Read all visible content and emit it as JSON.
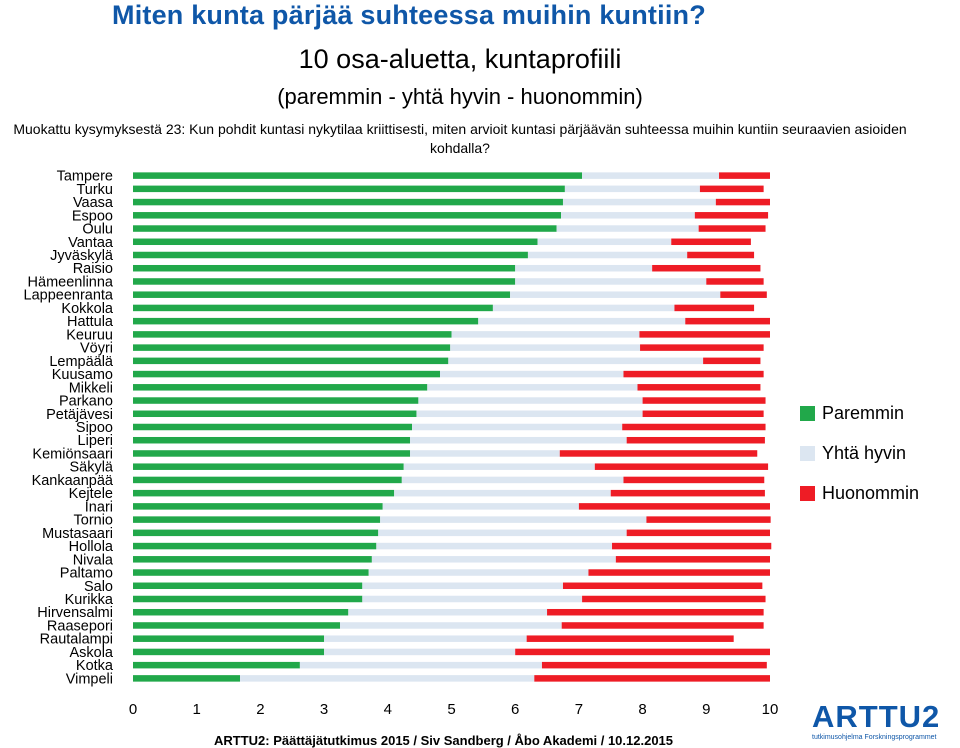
{
  "header": {
    "title": "Miten kunta pärjää suhteessa muihin kuntiin?",
    "subtitle1": "10 osa-aluetta, kuntaprofiili",
    "subtitle2": "(paremmin - yhtä hyvin - huonommin)",
    "question": "Muokattu kysymyksestä 23: Kun pohdit kuntasi nykytilaa kriittisesti, miten arvioit kuntasi pärjäävän suhteessa muihin kuntiin seuraavien asioiden kohdalla?"
  },
  "colors": {
    "paremmin": "#21a84a",
    "yhta_hyvin": "#dce6f1",
    "huonommin": "#ee1c25",
    "title": "#0f57a8"
  },
  "footer": {
    "text": "ARTTU2: Päättäjätutkimus 2015 / Siv Sandberg / Åbo Akademi / 10.12.2015"
  },
  "logo": {
    "name": "ARTTU2",
    "tagline": "tutkimusohjelma  Forskningsprogrammet"
  },
  "chart_data": {
    "type": "bar",
    "orientation": "horizontal",
    "stacked": true,
    "xlim": [
      0,
      10
    ],
    "xticks": [
      "0",
      "1",
      "2",
      "3",
      "4",
      "5",
      "6",
      "7",
      "8",
      "9",
      "10"
    ],
    "grid": false,
    "legend_position": "right",
    "categories": [
      "Tampere",
      "Turku",
      "Vaasa",
      "Espoo",
      "Oulu",
      "Vantaa",
      "Jyväskylä",
      "Raisio",
      "Hämeenlinna",
      "Lappeenranta",
      "Kokkola",
      "Hattula",
      "Keuruu",
      "Vöyri",
      "Lempäälä",
      "Kuusamo",
      "Mikkeli",
      "Parkano",
      "Petäjävesi",
      "Sipoo",
      "Liperi",
      "Kemiönsaari",
      "Säkylä",
      "Kankaanpää",
      "Kejtele",
      "Inari",
      "Tornio",
      "Mustasaari",
      "Hollola",
      "Nivala",
      "Paltamo",
      "Salo",
      "Kurikka",
      "Hirvensalmi",
      "Raasepori",
      "Rautalampi",
      "Askola",
      "Kotka",
      "Vimpeli"
    ],
    "series": [
      {
        "name": "Paremmin",
        "values": [
          7.05,
          6.78,
          6.75,
          6.72,
          6.65,
          6.35,
          6.2,
          6.0,
          6.0,
          5.92,
          5.65,
          5.42,
          5.0,
          4.98,
          4.95,
          4.82,
          4.62,
          4.48,
          4.45,
          4.38,
          4.35,
          4.35,
          4.25,
          4.22,
          4.1,
          3.92,
          3.88,
          3.85,
          3.82,
          3.75,
          3.7,
          3.6,
          3.6,
          3.38,
          3.25,
          3.0,
          3.0,
          2.62,
          1.68
        ]
      },
      {
        "name": "Yhtä hyvin",
        "values": [
          2.15,
          2.12,
          2.4,
          2.1,
          2.23,
          2.1,
          2.5,
          2.15,
          3.0,
          3.3,
          2.85,
          3.25,
          2.95,
          2.98,
          4.0,
          2.88,
          3.3,
          3.52,
          3.55,
          3.3,
          3.4,
          2.35,
          3.0,
          3.48,
          3.4,
          3.08,
          4.18,
          3.9,
          3.7,
          3.83,
          3.45,
          3.15,
          3.45,
          3.12,
          3.48,
          3.18,
          3.0,
          3.8,
          4.62
        ]
      },
      {
        "name": "Huonommin",
        "values": [
          0.8,
          1.0,
          0.85,
          1.15,
          1.05,
          1.25,
          1.05,
          1.7,
          0.9,
          0.73,
          1.25,
          1.33,
          2.05,
          1.94,
          0.9,
          2.2,
          1.93,
          1.93,
          1.9,
          2.25,
          2.17,
          3.1,
          2.72,
          2.21,
          2.42,
          3.0,
          1.95,
          2.25,
          2.5,
          2.42,
          2.85,
          3.13,
          2.88,
          3.4,
          3.17,
          3.25,
          4.0,
          3.53,
          3.7
        ]
      }
    ]
  }
}
